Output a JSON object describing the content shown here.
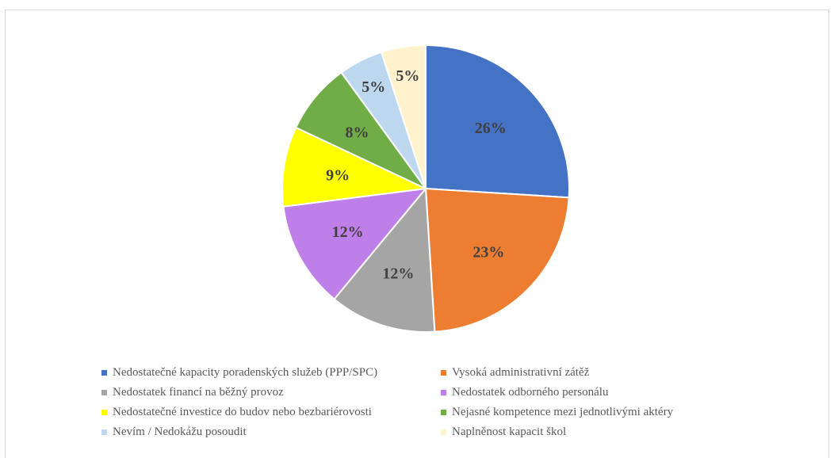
{
  "chart_data": {
    "type": "pie",
    "title": "",
    "slices": [
      {
        "label": "Nedostatečné kapacity poradenských služeb (PPP/SPC)",
        "value": 26,
        "display": "26%",
        "color": "#4472C4"
      },
      {
        "label": "Vysoká administrativní zátěž",
        "value": 23,
        "display": "23%",
        "color": "#ED7D31"
      },
      {
        "label": "Nedostatek financí na běžný provoz",
        "value": 12,
        "display": "12%",
        "color": "#A5A5A5"
      },
      {
        "label": "Nedostatek odborného personálu",
        "value": 12,
        "display": "12%",
        "color": "#BF7FE8"
      },
      {
        "label": "Nedostatečné investice do budov nebo bezbariérovosti",
        "value": 9,
        "display": "9%",
        "color": "#FFFF00"
      },
      {
        "label": "Nejasné kompetence mezi jednotlivými aktéry",
        "value": 8,
        "display": "8%",
        "color": "#70AD47"
      },
      {
        "label": "Nevím / Nedokážu posoudit",
        "value": 5,
        "display": "5%",
        "color": "#BDD7EE"
      },
      {
        "label": "Naplněnost kapacit škol",
        "value": 5,
        "display": "5%",
        "color": "#FFF2CC"
      }
    ],
    "legend_position": "bottom"
  }
}
